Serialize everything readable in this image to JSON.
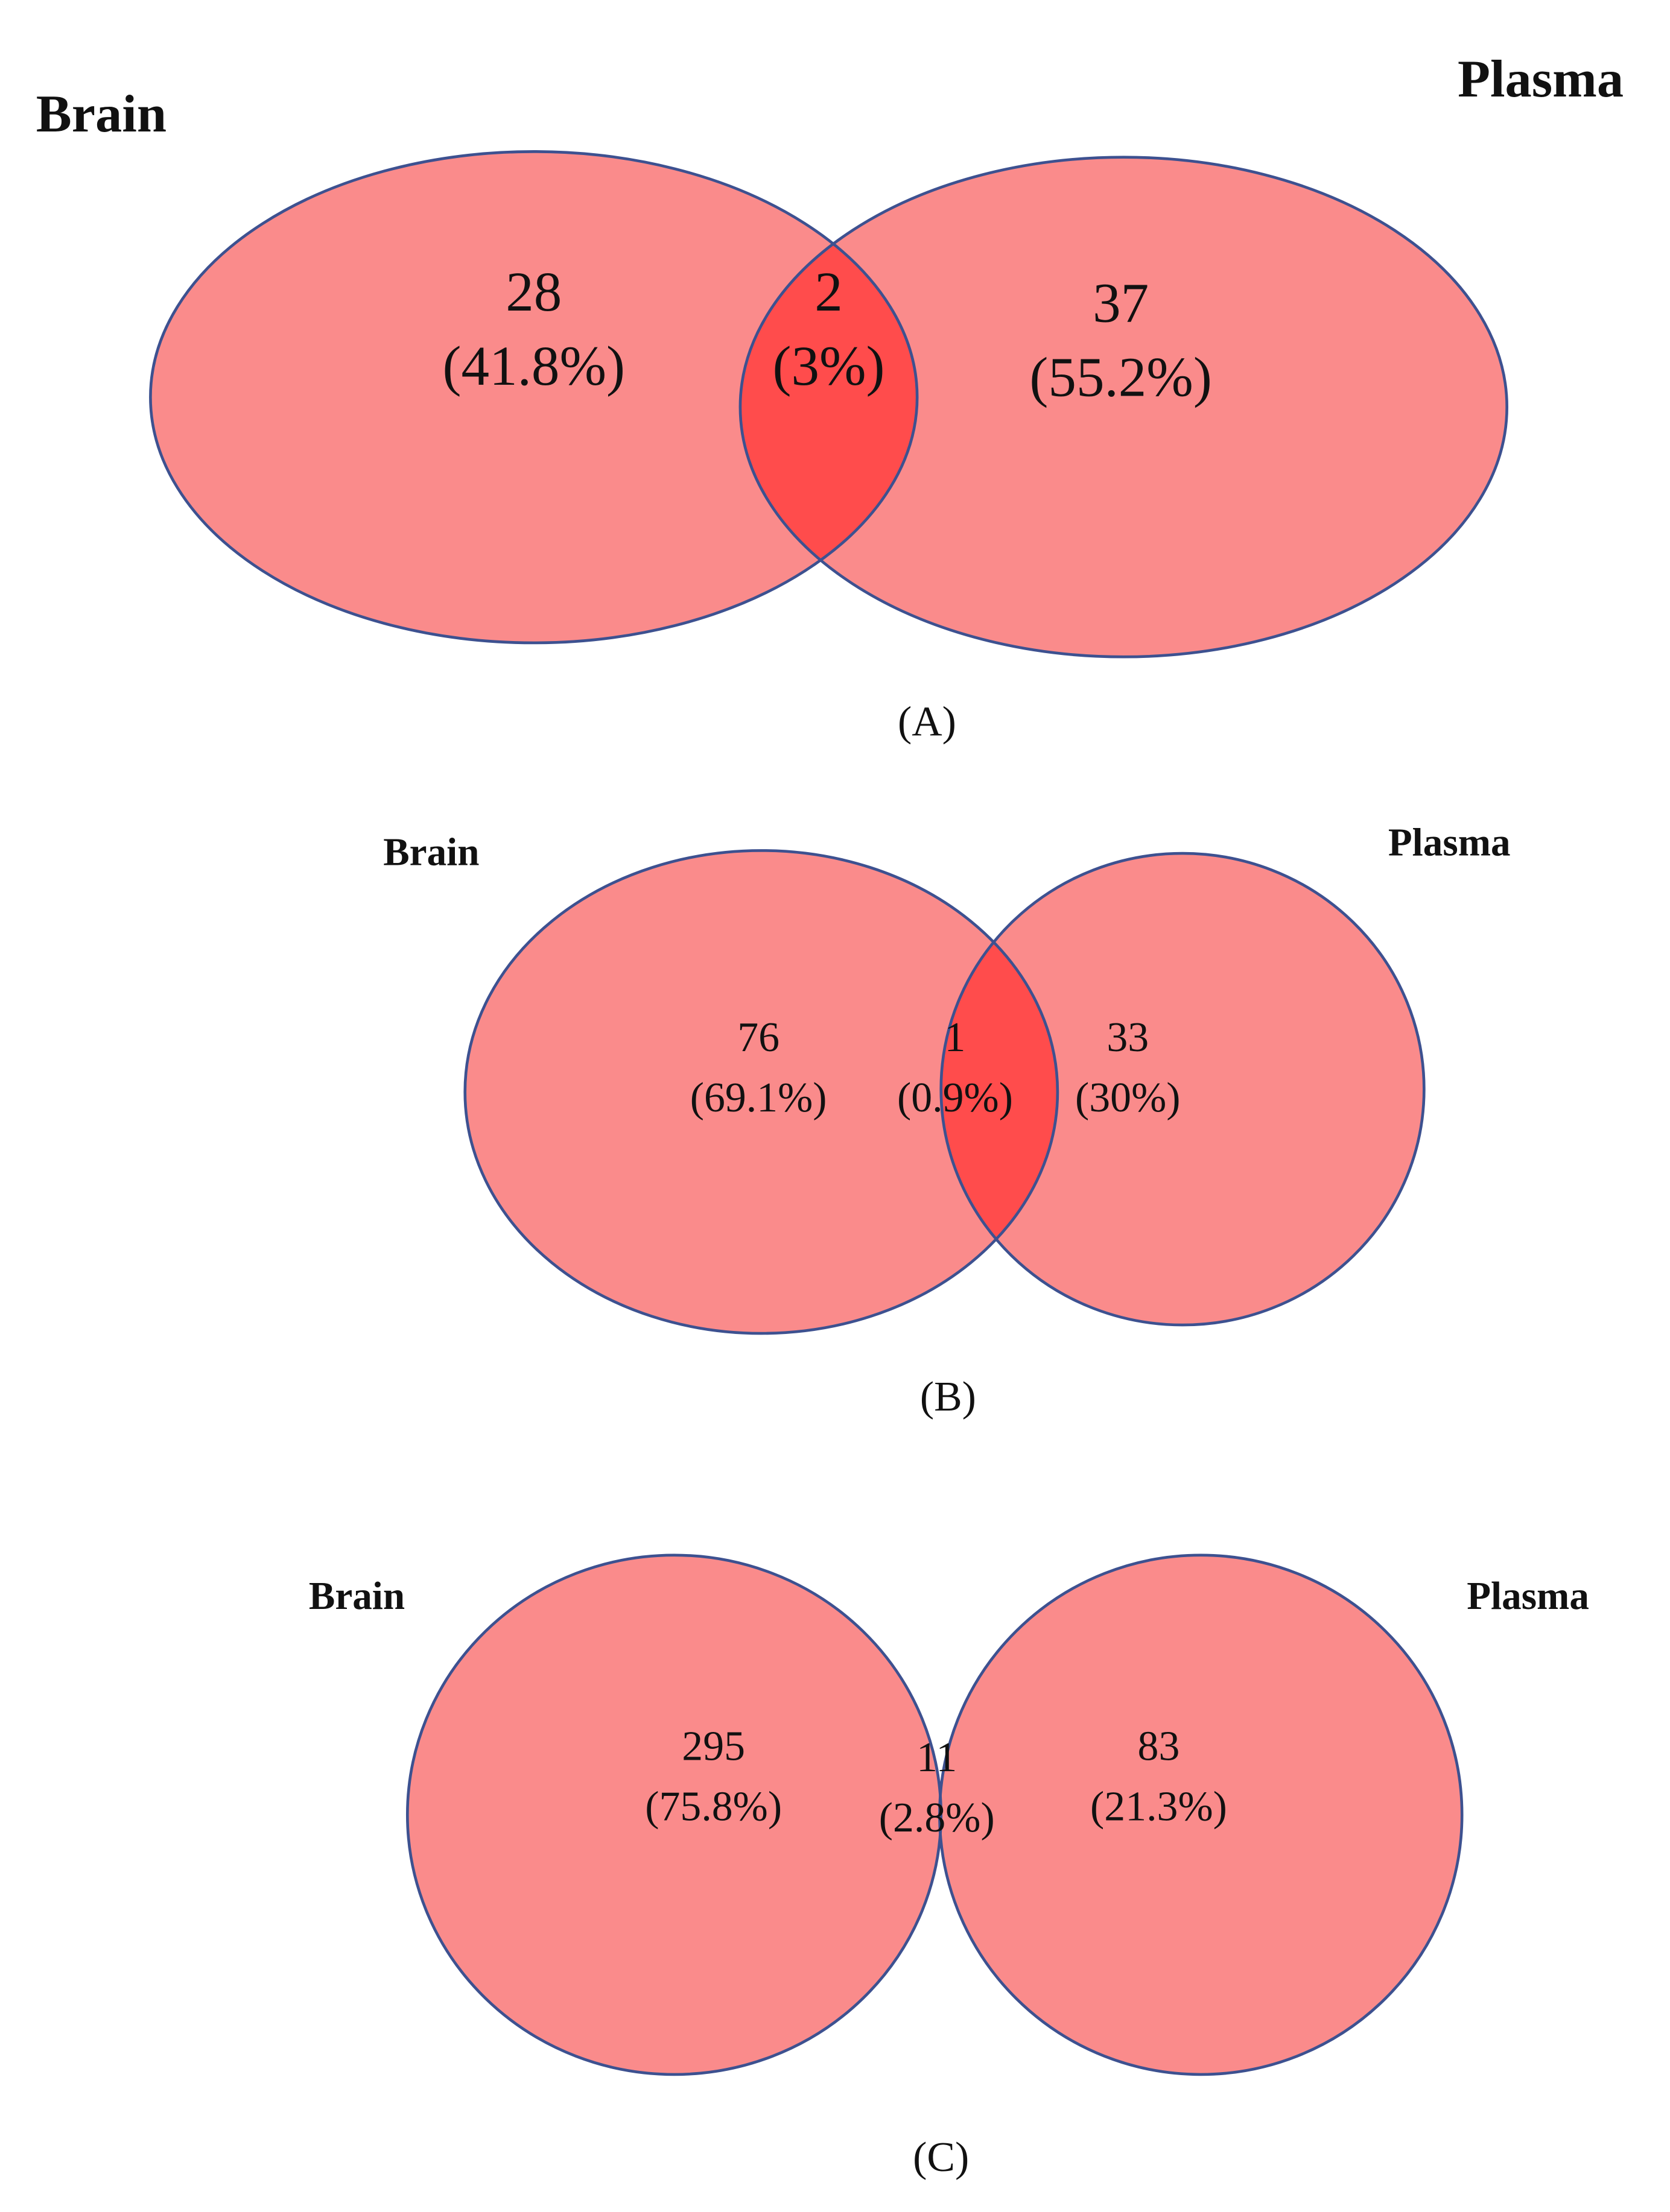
{
  "chart_data": [
    {
      "type": "venn",
      "panel_label": "(A)",
      "sets": [
        "Brain",
        "Plasma"
      ],
      "values": [
        28,
        2,
        37
      ],
      "percentages": {
        "values": [
          41.8,
          3,
          55.2
        ],
        "value_labels": [
          "(41.8%)",
          "(3%)",
          "(55.2%)"
        ]
      },
      "colors": {
        "region": "#fa8b8b",
        "overlap": "#ff4c4c",
        "outline": "#3d5190"
      }
    },
    {
      "type": "venn",
      "panel_label": "(B)",
      "sets": [
        "Brain",
        "Plasma"
      ],
      "values": [
        76,
        1,
        33
      ],
      "percentages": {
        "values": [
          69.1,
          0.9,
          30
        ],
        "value_labels": [
          "(69.1%)",
          "(0.9%)",
          "(30%)"
        ]
      },
      "colors": {
        "region": "#fa8b8b",
        "overlap": "#ff4c4c",
        "outline": "#3d5190"
      }
    },
    {
      "type": "venn",
      "panel_label": "(C)",
      "sets": [
        "Brain",
        "Plasma"
      ],
      "values": [
        295,
        11,
        83
      ],
      "percentages": {
        "values": [
          75.8,
          2.8,
          21.3
        ],
        "value_labels": [
          "(75.8%)",
          "(2.8%)",
          "(21.3%)"
        ]
      },
      "colors": {
        "region": "#fa8b8b",
        "overlap": "#ff4c4c",
        "outline": "#3d5190"
      }
    }
  ]
}
